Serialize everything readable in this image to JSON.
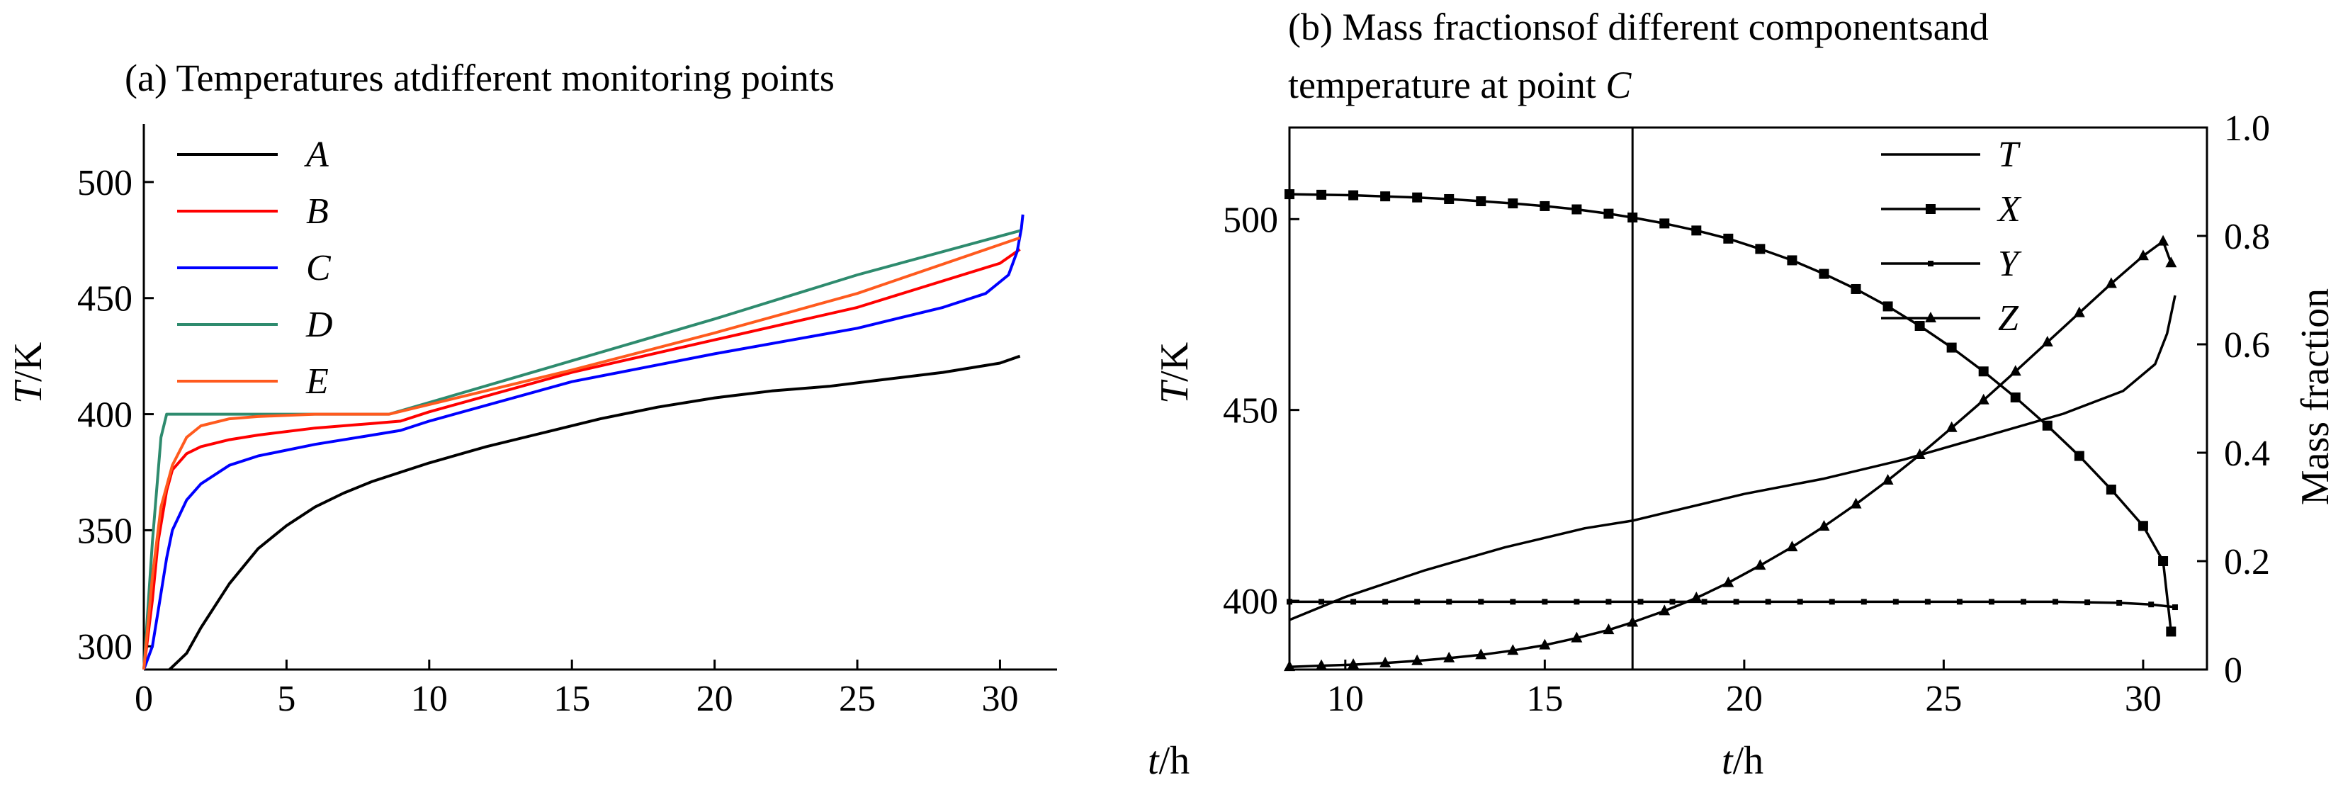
{
  "chart_data": [
    {
      "type": "line",
      "title": "(a) Temperatures atdifferent monitoring points",
      "xlabel_var": "t",
      "xlabel_unit": "/h",
      "ylabel_var": "T",
      "ylabel_unit": "/K",
      "xlim": [
        0,
        32
      ],
      "ylim": [
        290,
        525
      ],
      "xticks": [
        0,
        5,
        10,
        15,
        20,
        25,
        30
      ],
      "yticks": [
        300,
        350,
        400,
        450,
        500
      ],
      "legend_position": "top-left",
      "series": [
        {
          "name": "A",
          "color": "#000000",
          "x": [
            0.9,
            1.5,
            2,
            3,
            4,
            5,
            6,
            7,
            8,
            9,
            10,
            12,
            14,
            16,
            18,
            20,
            22,
            24,
            26,
            28,
            30,
            30.7
          ],
          "y": [
            290,
            297,
            308,
            327,
            342,
            352,
            360,
            366,
            371,
            375,
            379,
            386,
            392,
            398,
            403,
            407,
            410,
            412,
            415,
            418,
            422,
            425
          ]
        },
        {
          "name": "B",
          "color": "#ff0000",
          "x": [
            0,
            0.3,
            0.5,
            0.8,
            1.0,
            1.5,
            2,
            3,
            4,
            6,
            8,
            9,
            10,
            15,
            20,
            25,
            30,
            30.7
          ],
          "y": [
            290,
            320,
            345,
            367,
            376,
            383,
            386,
            389,
            391,
            394,
            396,
            397,
            401,
            418,
            432,
            446,
            465,
            471
          ]
        },
        {
          "name": "C",
          "color": "#0000ff",
          "x": [
            0,
            0.3,
            0.5,
            0.8,
            1.0,
            1.5,
            2,
            3,
            4,
            6,
            8,
            9,
            10,
            15,
            20,
            25,
            28,
            29.5,
            30.3,
            30.6,
            30.75,
            30.8
          ],
          "y": [
            290,
            300,
            315,
            338,
            350,
            363,
            370,
            378,
            382,
            387,
            391,
            393,
            397,
            414,
            426,
            437,
            446,
            452,
            460,
            470,
            480,
            486
          ]
        },
        {
          "name": "D",
          "color": "#2e8b6e",
          "x": [
            0,
            0.3,
            0.6,
            0.8,
            5,
            8.6,
            15,
            20,
            25,
            30.7
          ],
          "y": [
            290,
            345,
            390,
            400,
            400,
            400,
            423,
            441,
            460,
            479
          ]
        },
        {
          "name": "E",
          "color": "#ff5a1e",
          "x": [
            0,
            0.3,
            0.6,
            1.0,
            1.5,
            2,
            3,
            4,
            6,
            8.6,
            15,
            20,
            25,
            30.7
          ],
          "y": [
            290,
            330,
            360,
            378,
            390,
            395,
            398,
            399,
            400,
            400,
            419,
            435,
            452,
            476
          ]
        }
      ]
    },
    {
      "type": "line",
      "title_line1": "(b) Mass fractionsof different componentsand",
      "title_line2_prefix": "temperature at point ",
      "title_line2_var": "C",
      "xlabel_var": "t",
      "xlabel_unit": "/h",
      "ylabel_var": "T",
      "ylabel_unit": "/K",
      "y2label": "Mass fraction",
      "xlim": [
        8.6,
        31.6
      ],
      "ylim": [
        382,
        524
      ],
      "y2lim": [
        0,
        1.0
      ],
      "xticks": [
        10,
        15,
        20,
        25,
        30
      ],
      "yticks": [
        400,
        450,
        500
      ],
      "y2ticks": [
        0,
        0.2,
        0.4,
        0.6,
        0.8,
        1.0
      ],
      "y2ticklabels": [
        "0",
        "0.2",
        "0.4",
        "0.6",
        "0.8",
        "1.0"
      ],
      "vline_x": 17.2,
      "legend_position": "top-right",
      "series": [
        {
          "name": "T",
          "axis": "left",
          "marker": "none",
          "x": [
            8.6,
            10,
            12,
            14,
            16,
            17.2,
            18,
            20,
            22,
            24,
            26,
            28,
            29.5,
            30.3,
            30.6,
            30.8
          ],
          "y": [
            395,
            401,
            408,
            414,
            419,
            421,
            423,
            428,
            432,
            437,
            443,
            449,
            455,
            462,
            470,
            480
          ]
        },
        {
          "name": "X",
          "axis": "right",
          "marker": "square",
          "x": [
            8.6,
            9.4,
            10.2,
            11.0,
            11.8,
            12.6,
            13.4,
            14.2,
            15.0,
            15.8,
            16.6,
            17.2,
            18.0,
            18.8,
            19.6,
            20.4,
            21.2,
            22.0,
            22.8,
            23.6,
            24.4,
            25.2,
            26.0,
            26.8,
            27.6,
            28.4,
            29.2,
            30.0,
            30.5,
            30.7
          ],
          "y": [
            0.877,
            0.876,
            0.875,
            0.873,
            0.871,
            0.868,
            0.864,
            0.86,
            0.855,
            0.849,
            0.841,
            0.834,
            0.823,
            0.81,
            0.795,
            0.776,
            0.755,
            0.73,
            0.702,
            0.67,
            0.634,
            0.594,
            0.55,
            0.502,
            0.45,
            0.394,
            0.332,
            0.265,
            0.2,
            0.07
          ]
        },
        {
          "name": "Y",
          "axis": "right",
          "marker": "dot",
          "x": [
            8.6,
            9.4,
            10.2,
            11.0,
            11.8,
            12.6,
            13.4,
            14.2,
            15.0,
            15.8,
            16.6,
            17.4,
            18.2,
            19.0,
            19.8,
            20.6,
            21.4,
            22.2,
            23.0,
            23.8,
            24.6,
            25.4,
            26.2,
            27.0,
            27.8,
            28.6,
            29.4,
            30.2,
            30.8
          ],
          "y": [
            0.125,
            0.125,
            0.125,
            0.125,
            0.125,
            0.125,
            0.125,
            0.125,
            0.125,
            0.125,
            0.125,
            0.125,
            0.125,
            0.125,
            0.125,
            0.125,
            0.125,
            0.125,
            0.125,
            0.125,
            0.125,
            0.125,
            0.125,
            0.125,
            0.125,
            0.124,
            0.123,
            0.12,
            0.115
          ]
        },
        {
          "name": "Z",
          "axis": "right",
          "marker": "triangle",
          "x": [
            8.6,
            9.4,
            10.2,
            11.0,
            11.8,
            12.6,
            13.4,
            14.2,
            15.0,
            15.8,
            16.6,
            17.2,
            18.0,
            18.8,
            19.6,
            20.4,
            21.2,
            22.0,
            22.8,
            23.6,
            24.4,
            25.2,
            26.0,
            26.8,
            27.6,
            28.4,
            29.2,
            30.0,
            30.5,
            30.7
          ],
          "y": [
            0.005,
            0.007,
            0.009,
            0.012,
            0.016,
            0.021,
            0.027,
            0.035,
            0.045,
            0.058,
            0.073,
            0.087,
            0.108,
            0.132,
            0.16,
            0.192,
            0.226,
            0.264,
            0.305,
            0.349,
            0.396,
            0.446,
            0.497,
            0.55,
            0.604,
            0.658,
            0.712,
            0.763,
            0.79,
            0.75
          ]
        }
      ]
    }
  ]
}
